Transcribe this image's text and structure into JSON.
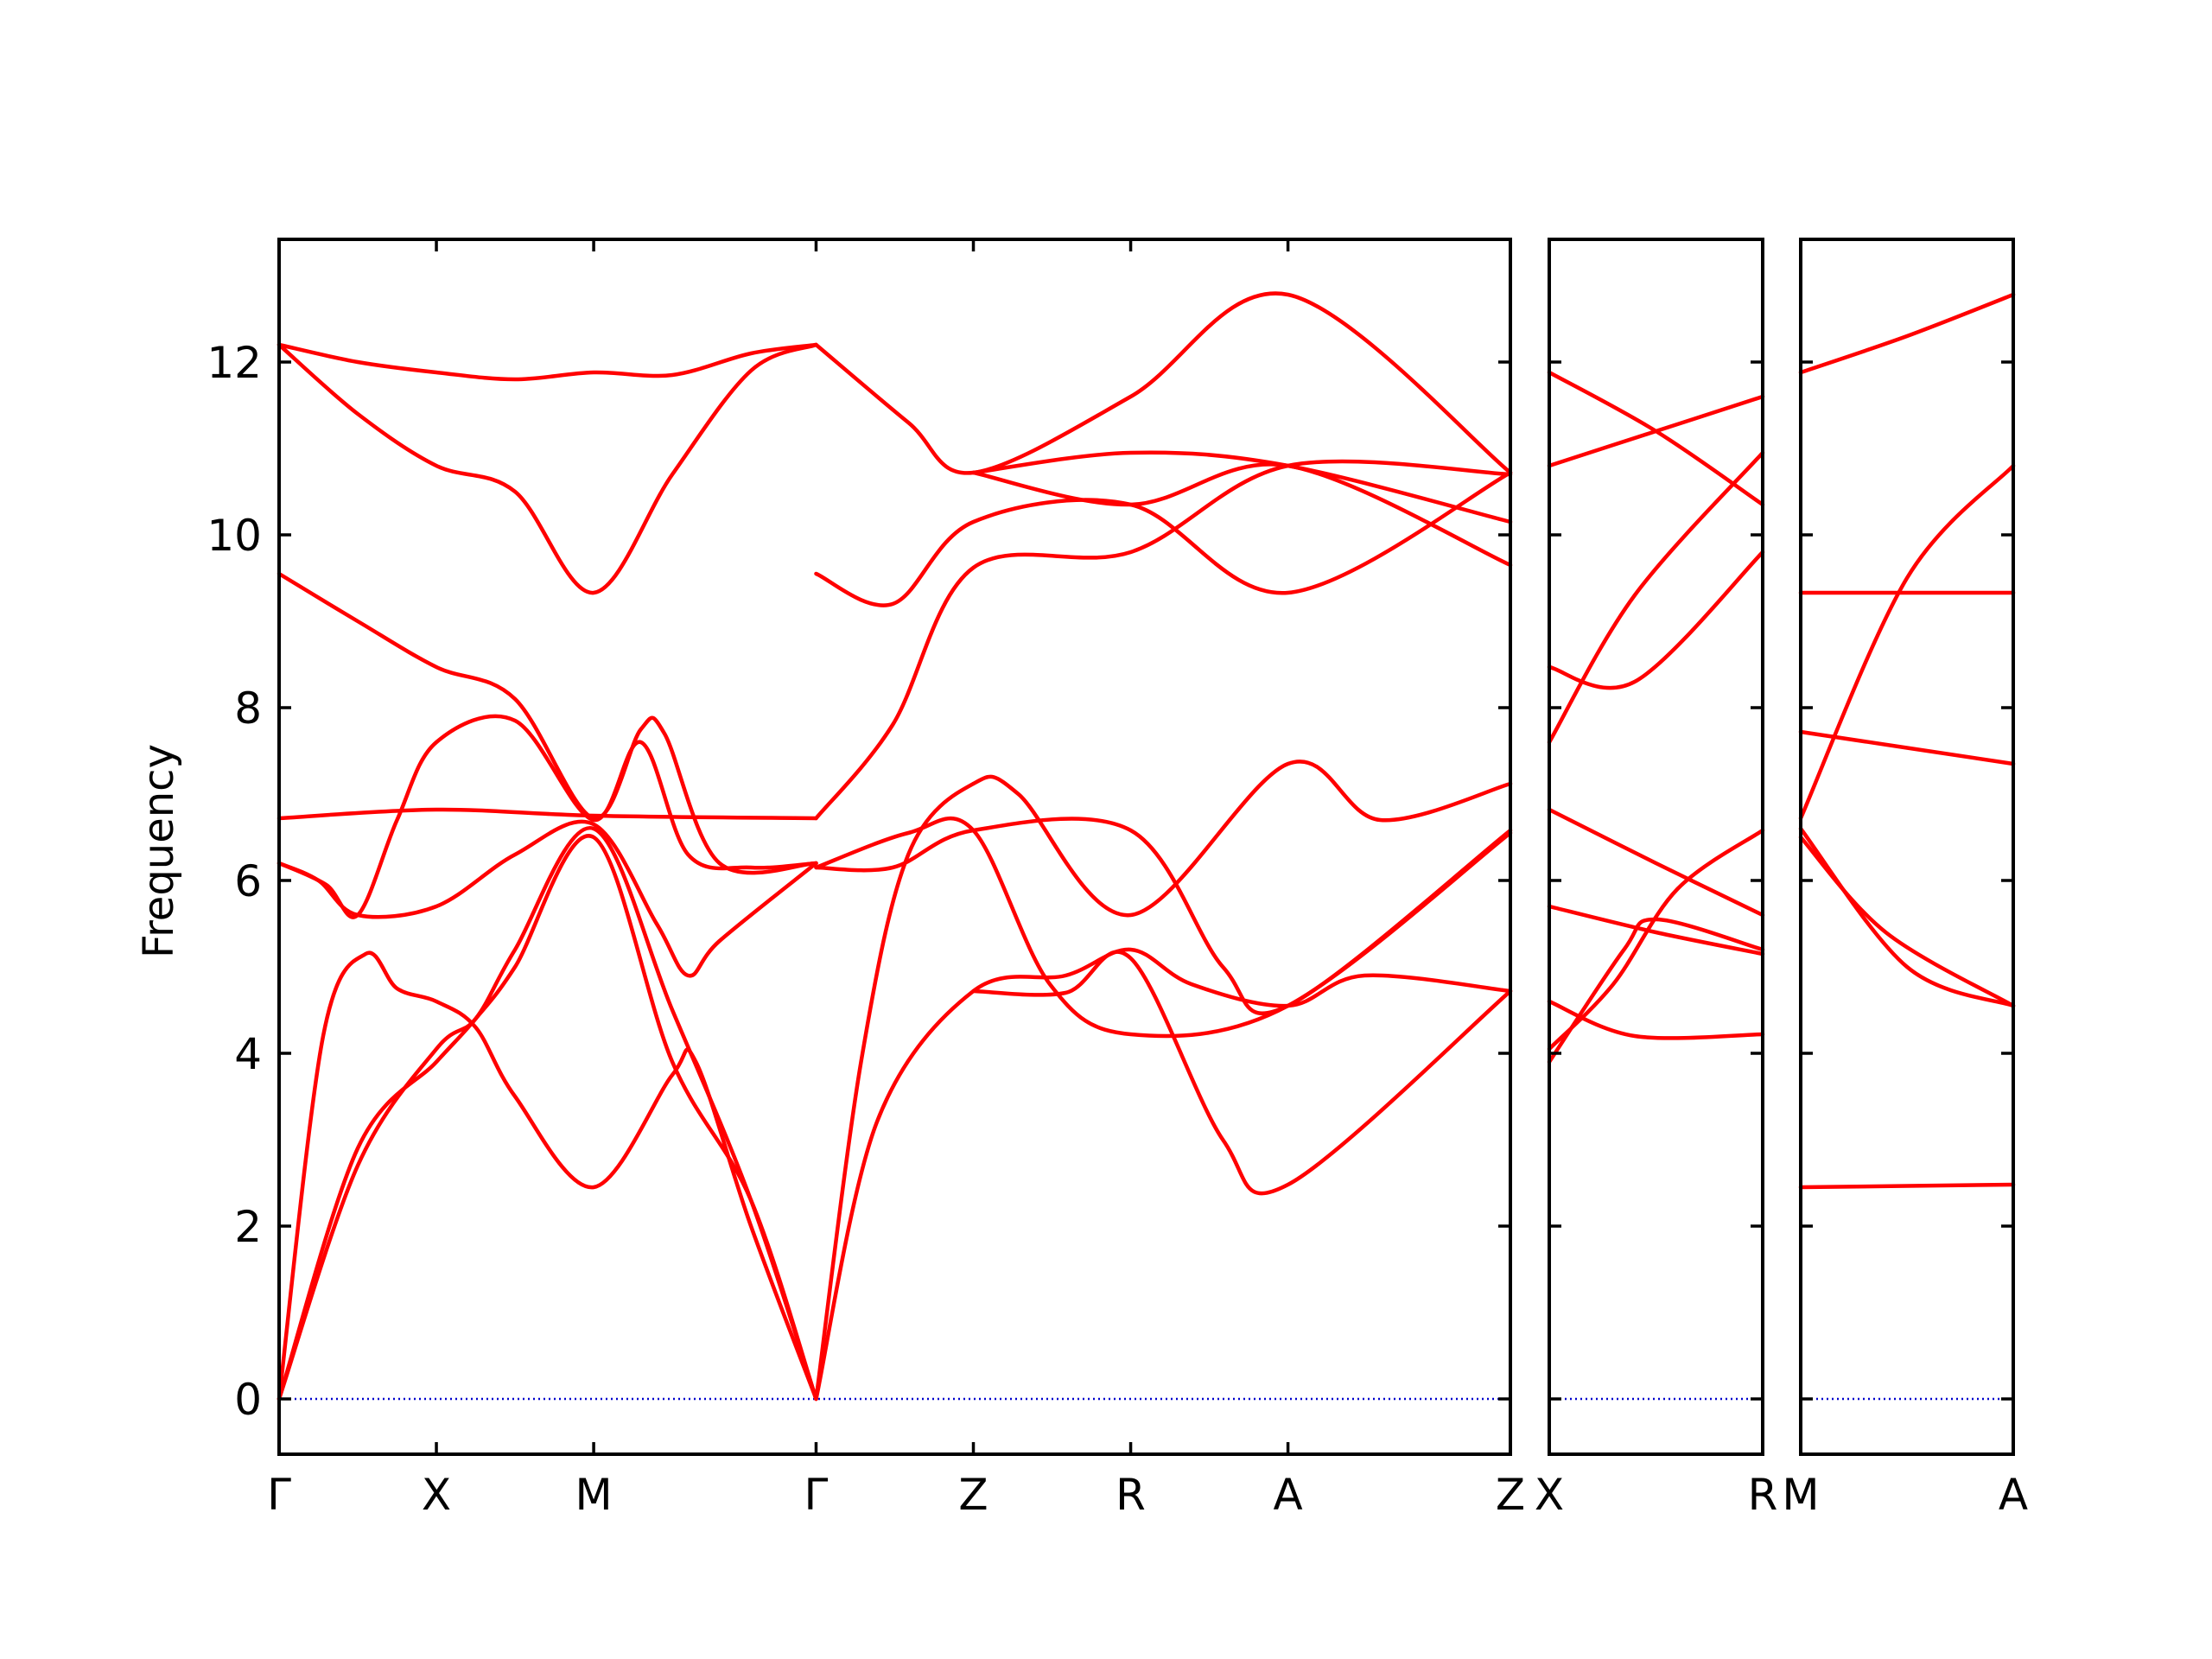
{
  "chart_data": {
    "type": "line",
    "ylabel": "Frequency",
    "ylim": [
      -0.64,
      13.42
    ],
    "y_ticks": [
      0,
      2,
      4,
      6,
      8,
      10,
      12
    ],
    "colors": {
      "bands": "#ff0000",
      "zero_line": "#0000cc",
      "axes": "#000000"
    },
    "panels": [
      {
        "path": [
          "Γ",
          "X",
          "M",
          "Γ",
          "Z",
          "R",
          "A",
          "Z"
        ],
        "x": [
          0,
          1,
          2,
          3.414,
          4.414,
          5.414,
          6.414,
          7.828
        ],
        "bands": [
          [
            [
              0,
              0
            ],
            [
              0.5,
              2.9
            ],
            [
              1,
              3.9
            ],
            [
              1.25,
              4.4
            ],
            [
              1.5,
              5.0
            ],
            [
              2,
              6.5
            ],
            [
              2.5,
              3.9
            ],
            [
              3.0,
              2.3
            ],
            [
              3.414,
              0
            ]
          ],
          [
            [
              0,
              0
            ],
            [
              0.5,
              2.7
            ],
            [
              1,
              4.05
            ],
            [
              1.25,
              4.4
            ],
            [
              1.5,
              5.2
            ],
            [
              2,
              6.6
            ],
            [
              2.5,
              4.5
            ],
            [
              3.0,
              2.3
            ],
            [
              3.414,
              0
            ]
          ],
          [
            [
              0,
              0
            ],
            [
              0.28,
              4.2
            ],
            [
              0.55,
              5.15
            ],
            [
              0.75,
              4.75
            ],
            [
              1,
              4.6
            ],
            [
              1.25,
              4.3
            ],
            [
              1.5,
              3.5
            ],
            [
              2,
              2.45
            ],
            [
              2.5,
              3.75
            ],
            [
              2.65,
              3.9
            ],
            [
              3.0,
              2.0
            ],
            [
              3.414,
              0
            ]
          ],
          [
            [
              0,
              6.2
            ],
            [
              0.25,
              6.0
            ],
            [
              0.5,
              5.6
            ],
            [
              1,
              5.7
            ],
            [
              1.5,
              6.3
            ],
            [
              2,
              6.65
            ],
            [
              2.4,
              5.5
            ],
            [
              2.6,
              4.9
            ],
            [
              2.8,
              5.3
            ],
            [
              3.414,
              6.2
            ]
          ],
          [
            [
              0,
              6.2
            ],
            [
              0.3,
              5.95
            ],
            [
              0.5,
              5.6
            ],
            [
              0.75,
              6.7
            ],
            [
              1,
              7.6
            ],
            [
              1.5,
              7.85
            ],
            [
              2,
              6.7
            ],
            [
              2.3,
              7.6
            ],
            [
              2.6,
              6.3
            ],
            [
              3.0,
              6.15
            ],
            [
              3.414,
              6.2
            ]
          ],
          [
            [
              0,
              6.72
            ],
            [
              1,
              6.82
            ],
            [
              2,
              6.75
            ],
            [
              3.414,
              6.72
            ]
          ],
          [
            [
              0,
              9.55
            ],
            [
              0.5,
              9.0
            ],
            [
              1,
              8.47
            ],
            [
              1.5,
              8.1
            ],
            [
              2,
              6.72
            ],
            [
              2.3,
              7.75
            ],
            [
              2.45,
              7.7
            ],
            [
              2.8,
              6.2
            ],
            [
              3.414,
              6.2
            ]
          ],
          [
            [
              0,
              12.2
            ],
            [
              0.5,
              11.4
            ],
            [
              1,
              10.8
            ],
            [
              1.5,
              10.5
            ],
            [
              2,
              9.33
            ],
            [
              2.5,
              10.7
            ],
            [
              3.0,
              11.9
            ],
            [
              3.414,
              12.2
            ]
          ],
          [
            [
              0,
              12.2
            ],
            [
              0.5,
              12.0
            ],
            [
              1,
              11.88
            ],
            [
              1.5,
              11.8
            ],
            [
              2,
              11.88
            ],
            [
              2.5,
              11.85
            ],
            [
              3.0,
              12.1
            ],
            [
              3.414,
              12.2
            ]
          ],
          [
            [
              3.414,
              0
            ],
            [
              3.8,
              3.2
            ],
            [
              4.414,
              4.72
            ],
            [
              5.0,
              4.9
            ],
            [
              5.414,
              5.2
            ],
            [
              5.8,
              4.8
            ],
            [
              6.414,
              4.55
            ],
            [
              6.9,
              4.9
            ],
            [
              7.828,
              4.72
            ]
          ],
          [
            [
              3.414,
              0
            ],
            [
              3.7,
              3.9
            ],
            [
              4.0,
              6.3
            ],
            [
              4.414,
              7.12
            ],
            [
              4.7,
              7.0
            ],
            [
              5.414,
              5.6
            ],
            [
              6.414,
              7.35
            ],
            [
              7.0,
              6.7
            ],
            [
              7.828,
              7.12
            ]
          ],
          [
            [
              3.414,
              6.15
            ],
            [
              3.9,
              6.15
            ],
            [
              4.414,
              6.58
            ],
            [
              5.414,
              6.58
            ],
            [
              6.0,
              5.0
            ],
            [
              6.414,
              4.55
            ],
            [
              7.828,
              6.58
            ]
          ],
          [
            [
              3.414,
              6.15
            ],
            [
              4.0,
              6.55
            ],
            [
              4.414,
              6.58
            ],
            [
              4.9,
              4.8
            ],
            [
              5.414,
              4.22
            ],
            [
              6.414,
              4.55
            ],
            [
              7.828,
              6.55
            ]
          ],
          [
            [
              3.414,
              6.72
            ],
            [
              3.9,
              7.8
            ],
            [
              4.414,
              9.62
            ],
            [
              5.414,
              9.8
            ],
            [
              6.414,
              10.8
            ],
            [
              7.828,
              10.7
            ]
          ],
          [
            [
              3.414,
              9.55
            ],
            [
              3.9,
              9.2
            ],
            [
              4.414,
              10.15
            ],
            [
              5.414,
              10.35
            ],
            [
              6.414,
              9.33
            ],
            [
              7.828,
              10.72
            ]
          ],
          [
            [
              3.414,
              12.2
            ],
            [
              4.0,
              11.3
            ],
            [
              4.414,
              10.72
            ],
            [
              5.414,
              11.6
            ],
            [
              6.414,
              12.78
            ],
            [
              7.828,
              10.72
            ]
          ],
          [
            [
              4.414,
              10.72
            ],
            [
              5.414,
              10.95
            ],
            [
              6.414,
              10.8
            ],
            [
              7.828,
              10.15
            ]
          ],
          [
            [
              4.414,
              10.72
            ],
            [
              5.414,
              10.35
            ],
            [
              6.414,
              10.8
            ],
            [
              7.828,
              9.65
            ]
          ],
          [
            [
              4.414,
              4.72
            ],
            [
              5.0,
              4.7
            ],
            [
              5.414,
              5.1
            ],
            [
              6.0,
              3.0
            ],
            [
              6.414,
              2.48
            ],
            [
              7.828,
              4.72
            ]
          ]
        ]
      },
      {
        "path": [
          "X",
          "R"
        ],
        "x": [
          0,
          1
        ],
        "bands": [
          [
            [
              0,
              3.9
            ],
            [
              0.35,
              5.2
            ],
            [
              0.5,
              5.55
            ],
            [
              1,
              5.2
            ]
          ],
          [
            [
              0,
              4.05
            ],
            [
              0.3,
              4.8
            ],
            [
              0.6,
              5.9
            ],
            [
              1,
              6.58
            ]
          ],
          [
            [
              0,
              4.6
            ],
            [
              0.4,
              4.2
            ],
            [
              1,
              4.22
            ]
          ],
          [
            [
              0,
              5.7
            ],
            [
              0.5,
              5.4
            ],
            [
              1,
              5.15
            ]
          ],
          [
            [
              0,
              6.82
            ],
            [
              0.5,
              6.2
            ],
            [
              1,
              5.6
            ]
          ],
          [
            [
              0,
              7.6
            ],
            [
              0.4,
              9.3
            ],
            [
              1,
              10.95
            ]
          ],
          [
            [
              0,
              8.47
            ],
            [
              0.4,
              8.3
            ],
            [
              1,
              9.8
            ]
          ],
          [
            [
              0,
              10.8
            ],
            [
              0.5,
              11.2
            ],
            [
              1,
              11.6
            ]
          ],
          [
            [
              0,
              11.88
            ],
            [
              0.5,
              11.2
            ],
            [
              1,
              10.35
            ]
          ]
        ]
      },
      {
        "path": [
          "M",
          "A"
        ],
        "x": [
          0,
          1
        ],
        "bands": [
          [
            [
              0,
              2.45
            ],
            [
              1,
              2.48
            ]
          ],
          [
            [
              0,
              6.5
            ],
            [
              0.4,
              5.4
            ],
            [
              1,
              4.55
            ]
          ],
          [
            [
              0,
              6.6
            ],
            [
              0.5,
              5.0
            ],
            [
              1,
              4.55
            ]
          ],
          [
            [
              0,
              6.72
            ],
            [
              0.5,
              9.5
            ],
            [
              1,
              10.8
            ]
          ],
          [
            [
              0,
              7.72
            ],
            [
              1,
              7.35
            ]
          ],
          [
            [
              0,
              9.33
            ],
            [
              1,
              9.33
            ]
          ],
          [
            [
              0,
              11.88
            ],
            [
              0.5,
              12.3
            ],
            [
              1,
              12.78
            ]
          ]
        ]
      }
    ]
  }
}
